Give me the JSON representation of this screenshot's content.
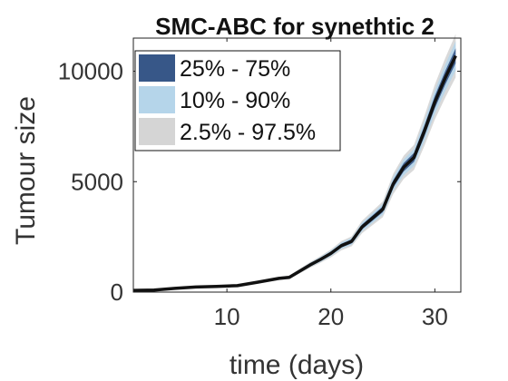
{
  "chart_data": {
    "type": "line",
    "title": "SMC-ABC for synethtic 2",
    "xlabel": "time (days)",
    "ylabel": "Tumour size",
    "xlim": [
      1,
      32.5
    ],
    "ylim": [
      0,
      11500
    ],
    "xticks": [
      10,
      20,
      30
    ],
    "yticks": [
      0,
      5000,
      10000
    ],
    "xtick_labels": [
      "10",
      "20",
      "30"
    ],
    "ytick_labels": [
      "0",
      "5000",
      "10000"
    ],
    "grid": false,
    "legend_position": "top-left",
    "legend": [
      {
        "label": "25% - 75%",
        "color": "#375788"
      },
      {
        "label": "10% - 90%",
        "color": "#b5d5ea"
      },
      {
        "label": "2.5% - 97.5%",
        "color": "#d5d5d5"
      }
    ],
    "median_color": "#111111",
    "x": [
      1,
      3,
      5,
      7,
      9,
      11,
      13,
      15,
      16,
      18,
      19,
      20,
      21,
      22,
      23,
      24,
      25,
      26,
      27,
      28,
      29,
      30,
      31,
      32
    ],
    "series": [
      {
        "values": [
          80,
          90,
          170,
          230,
          260,
          290,
          450,
          620,
          670,
          1230,
          1480,
          1750,
          2100,
          2300,
          2950,
          3350,
          3750,
          4900,
          5650,
          6100,
          7300,
          8600,
          9700,
          10700
        ]
      }
    ],
    "band_spread": [
      0.03,
      0.06,
      0.09
    ]
  }
}
